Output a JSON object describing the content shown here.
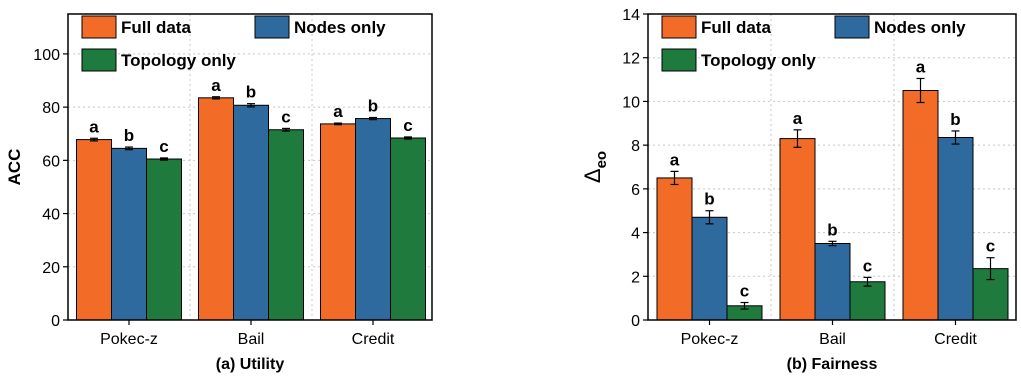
{
  "colors": {
    "full": "#f26b27",
    "nodes": "#2e6a9e",
    "topology": "#1f7a3e",
    "grid": "#c8c8c8"
  },
  "chart_data": [
    {
      "type": "bar",
      "caption": "(a) Utility",
      "ylabel": "ACC",
      "ylim": [
        0,
        115
      ],
      "yticks": [
        0,
        20,
        40,
        60,
        80,
        100
      ],
      "categories": [
        "Pokec-z",
        "Bail",
        "Credit"
      ],
      "grid": true,
      "legend_position": "top-left",
      "series": [
        {
          "name": "Full data",
          "color_key": "full",
          "values": [
            67.8,
            83.5,
            73.7
          ],
          "errors": [
            0.5,
            0.4,
            0.3
          ],
          "labels": [
            "a",
            "a",
            "a"
          ]
        },
        {
          "name": "Nodes only",
          "color_key": "nodes",
          "values": [
            64.5,
            80.7,
            75.7
          ],
          "errors": [
            0.5,
            0.6,
            0.4
          ],
          "labels": [
            "b",
            "b",
            "b"
          ]
        },
        {
          "name": "Topology only",
          "color_key": "topology",
          "values": [
            60.5,
            71.5,
            68.4
          ],
          "errors": [
            0.4,
            0.5,
            0.4
          ],
          "labels": [
            "c",
            "c",
            "c"
          ]
        }
      ]
    },
    {
      "type": "bar",
      "caption": "(b) Fairness",
      "ylabel": "Δ",
      "ylabel_sub": "eo",
      "ylim": [
        0,
        14
      ],
      "yticks": [
        0,
        2,
        4,
        6,
        8,
        10,
        12,
        14
      ],
      "categories": [
        "Pokec-z",
        "Bail",
        "Credit"
      ],
      "grid": true,
      "legend_position": "top-left",
      "series": [
        {
          "name": "Full data",
          "color_key": "full",
          "values": [
            6.5,
            8.3,
            10.5
          ],
          "errors": [
            0.3,
            0.4,
            0.55
          ],
          "labels": [
            "a",
            "a",
            "a"
          ]
        },
        {
          "name": "Nodes only",
          "color_key": "nodes",
          "values": [
            4.7,
            3.5,
            8.35
          ],
          "errors": [
            0.3,
            0.1,
            0.3
          ],
          "labels": [
            "b",
            "b",
            "b"
          ]
        },
        {
          "name": "Topology only",
          "color_key": "topology",
          "values": [
            0.65,
            1.75,
            2.35
          ],
          "errors": [
            0.15,
            0.2,
            0.5
          ],
          "labels": [
            "c",
            "c",
            "c"
          ]
        }
      ]
    }
  ]
}
